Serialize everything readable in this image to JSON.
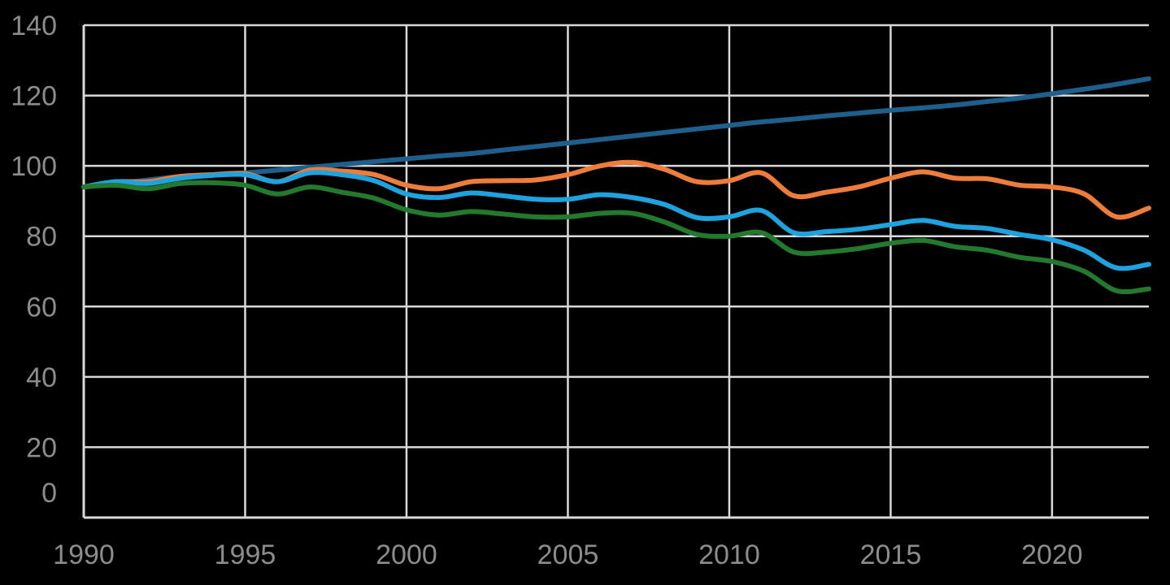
{
  "chart_data": {
    "type": "line",
    "title": "",
    "xlabel": "",
    "ylabel": "",
    "xlim": [
      1990,
      2023
    ],
    "ylim": [
      0,
      140
    ],
    "grid": true,
    "legend": "none",
    "x_ticks": [
      "1990",
      "1995",
      "2000",
      "2005",
      "2010",
      "2015",
      "2020"
    ],
    "y_ticks": [
      "0",
      "20",
      "40",
      "60",
      "80",
      "100",
      "120",
      "140"
    ],
    "x": [
      1990,
      1991,
      1992,
      1993,
      1994,
      1995,
      1996,
      1997,
      1998,
      1999,
      2000,
      2001,
      2002,
      2003,
      2004,
      2005,
      2006,
      2007,
      2008,
      2009,
      2010,
      2011,
      2012,
      2013,
      2014,
      2015,
      2016,
      2017,
      2018,
      2019,
      2020,
      2021,
      2022,
      2023
    ],
    "series": [
      {
        "color": "#1f5f8b",
        "values": [
          94,
          95,
          96,
          97,
          97.5,
          98,
          98.8,
          99.6,
          100.4,
          101.2,
          102,
          102.8,
          103.5,
          104.5,
          105.5,
          106.5,
          107.5,
          108.5,
          109.5,
          110.5,
          111.5,
          112.5,
          113.3,
          114.2,
          115,
          115.8,
          116.5,
          117.3,
          118.3,
          119.3,
          120.5,
          121.8,
          123.2,
          124.8
        ]
      },
      {
        "color": "#ee7d3b",
        "values": [
          94,
          95.5,
          95.5,
          97,
          97.5,
          97.8,
          95.5,
          98.8,
          98.5,
          97.5,
          94.5,
          93.5,
          95.5,
          95.8,
          96,
          97.5,
          100,
          101,
          99,
          95.5,
          95.8,
          98,
          91.5,
          92.5,
          94,
          96.5,
          98.3,
          96.5,
          96.3,
          94.5,
          94,
          92,
          85.5,
          88
        ]
      },
      {
        "color": "#1ea3df",
        "values": [
          94,
          95.5,
          95,
          96.5,
          97.3,
          97.5,
          95.5,
          98,
          97.5,
          95.8,
          92,
          91,
          92.3,
          91.5,
          90.5,
          90.5,
          91.8,
          91,
          89,
          85.3,
          85.5,
          87.3,
          81,
          81.3,
          82,
          83.3,
          84.5,
          82.8,
          82.2,
          80.5,
          79,
          76,
          71,
          72
        ]
      },
      {
        "color": "#237a2f",
        "values": [
          94,
          94.5,
          93.5,
          95,
          95.2,
          94.5,
          92,
          94,
          92.5,
          90.8,
          87.5,
          86,
          87,
          86.3,
          85.5,
          85.5,
          86.5,
          86.5,
          84,
          80.5,
          80,
          81,
          75.5,
          75.5,
          76.5,
          78,
          78.8,
          77,
          76,
          74,
          72.8,
          70,
          64.5,
          65
        ]
      }
    ]
  }
}
